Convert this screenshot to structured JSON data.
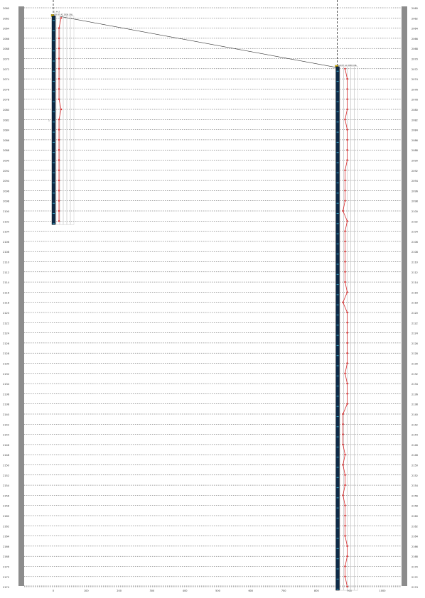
{
  "chart_data": {
    "type": "line",
    "title": "",
    "xlabel": "",
    "ylabel": "",
    "grid": true,
    "legend": "none",
    "depth_axis": {
      "range": [
        0,
        58
      ],
      "gridlines": 58,
      "left_ticks": [
        "2060",
        "2062",
        "2064",
        "2066",
        "2068",
        "2070",
        "2072",
        "2074",
        "2076",
        "2078",
        "2080",
        "2082",
        "2084",
        "2086",
        "2088",
        "2090",
        "2092",
        "2094",
        "2096",
        "2098",
        "2100",
        "2102",
        "2104",
        "2106",
        "2108",
        "2110",
        "2112",
        "2114",
        "2116",
        "2118",
        "2120",
        "2122",
        "2124",
        "2126",
        "2128",
        "2130",
        "2132",
        "2134",
        "2136",
        "2138",
        "2140",
        "2142",
        "2144",
        "2146",
        "2148",
        "2150",
        "2152",
        "2154",
        "2156",
        "2158",
        "2160",
        "2162",
        "2164",
        "2166",
        "2168",
        "2170",
        "2172",
        "2174",
        "2176"
      ],
      "right_ticks": [
        "2060",
        "2062",
        "2064",
        "2066",
        "2068",
        "2070",
        "2072",
        "2074",
        "2076",
        "2078",
        "2080",
        "2082",
        "2084",
        "2086",
        "2088",
        "2090",
        "2092",
        "2094",
        "2096",
        "2098",
        "2100",
        "2102",
        "2104",
        "2106",
        "2108",
        "2110",
        "2112",
        "2114",
        "2116",
        "2118",
        "2120",
        "2122",
        "2124",
        "2126",
        "2128",
        "2130",
        "2132",
        "2134",
        "2136",
        "2138",
        "2140",
        "2142",
        "2144",
        "2146",
        "2148",
        "2150",
        "2152",
        "2154",
        "2156",
        "2158",
        "2160",
        "2162",
        "2164",
        "2166",
        "2168",
        "2170",
        "2172",
        "2174",
        "2176"
      ]
    },
    "distance_axis": {
      "range": [
        0,
        1000
      ],
      "tick_values": [
        0,
        100,
        200,
        300,
        400,
        500,
        600,
        700,
        800,
        900,
        1000
      ],
      "tick_labels": [
        "0",
        "100",
        "200",
        "300",
        "400",
        "500",
        "600",
        "700",
        "800",
        "900",
        "1000"
      ]
    },
    "wells": [
      {
        "name": "",
        "position": 0,
        "top_index": 1,
        "bottom_index": 21,
        "header_top": "1 H-2",
        "header_bottom": "GR  RT  AC  DEN  CNL",
        "side_label": "1",
        "series": [
          {
            "name": "",
            "depth_index": [
              1,
              2,
              3,
              4,
              5,
              6,
              7,
              8,
              9,
              10,
              11,
              12,
              13,
              14,
              15,
              16,
              17,
              18,
              19,
              20,
              21
            ],
            "values": [
              2,
              1,
              1,
              1,
              1,
              1,
              1,
              1,
              1,
              2,
              1,
              1,
              1,
              1,
              1,
              1,
              1,
              1,
              1,
              1,
              1
            ]
          }
        ]
      },
      {
        "name": "",
        "position": 863,
        "top_index": 6,
        "bottom_index": 57,
        "header_top": "",
        "header_bottom": "GR  RT  AC  DEN  CNL",
        "side_label": "",
        "series": [
          {
            "name": "",
            "depth_index": [
              6,
              7,
              8,
              9,
              10,
              11,
              12,
              13,
              14,
              15,
              16,
              17,
              18,
              19,
              20,
              21,
              22,
              23,
              24,
              25,
              26,
              27,
              28,
              29,
              30,
              31,
              32,
              33,
              34,
              35,
              36,
              37,
              38,
              39,
              40,
              41,
              42,
              43,
              44,
              45,
              46,
              47,
              48,
              49,
              50,
              51,
              52,
              53,
              54,
              55,
              56,
              57
            ],
            "values": [
              2,
              3,
              3,
              3,
              3,
              2,
              3,
              3,
              3,
              3,
              2,
              2,
              2,
              2,
              1,
              3,
              2,
              2,
              2,
              2,
              2,
              2,
              3,
              1,
              3,
              3,
              3,
              3,
              3,
              3,
              2,
              3,
              3,
              3,
              1,
              1,
              1,
              1,
              2,
              1,
              2,
              2,
              1,
              2,
              2,
              2,
              2,
              3,
              3,
              2,
              2,
              3
            ]
          }
        ]
      }
    ],
    "correlation": {
      "from_well": 0,
      "to_well": 1,
      "from_index": 1,
      "to_index": 6
    }
  }
}
